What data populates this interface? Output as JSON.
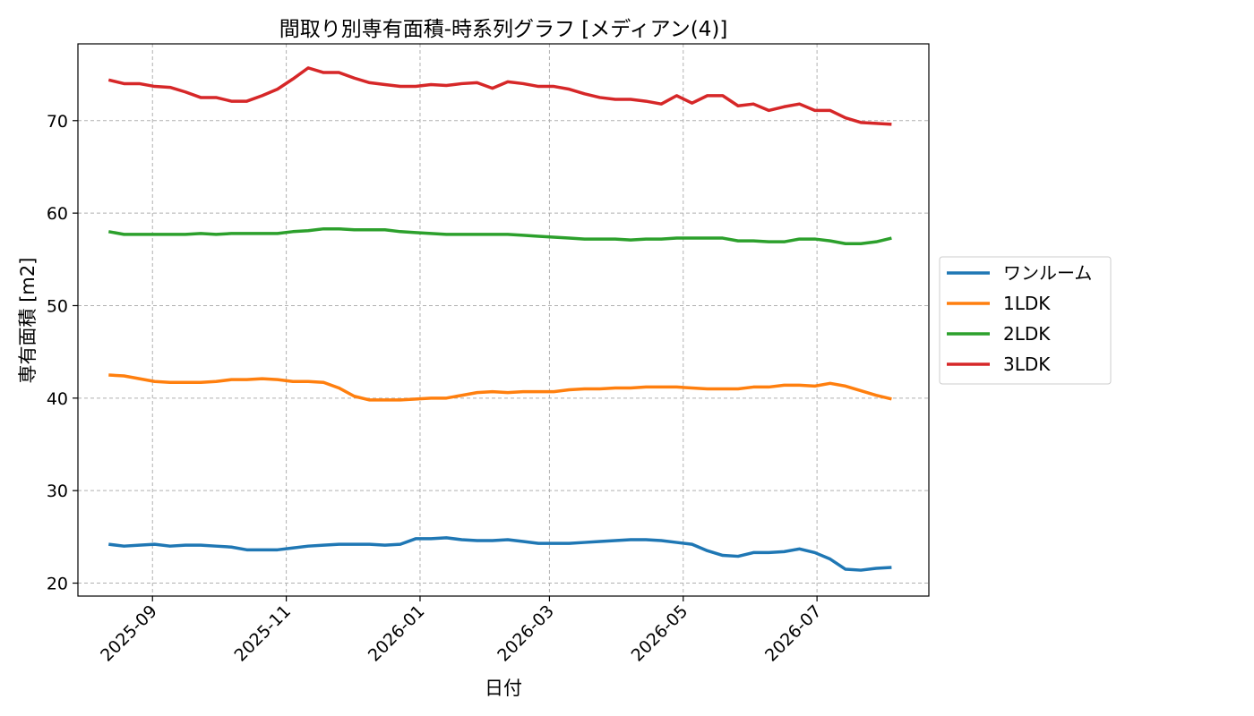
{
  "chart_data": {
    "type": "line",
    "title": "間取り別専有面積-時系列グラフ [メディアン(4)]",
    "xlabel": "日付",
    "ylabel": "専有面積 [m2]",
    "x_ticks": [
      "2025-09-01",
      "2025-11-01",
      "2026-01-01",
      "2026-03-01",
      "2026-05-01",
      "2026-07-01"
    ],
    "x_tick_labels": [
      "2025-09",
      "2025-11",
      "2026-01",
      "2026-03",
      "2026-05",
      "2026-07"
    ],
    "x_range": [
      "2025-07-29",
      "2026-08-21"
    ],
    "ylim": [
      18.6,
      78.3
    ],
    "y_ticks": [
      20,
      30,
      40,
      50,
      60,
      70
    ],
    "y_tick_labels": [
      "20",
      "30",
      "40",
      "50",
      "60",
      "70"
    ],
    "grid": true,
    "legend_position": "right",
    "x": [
      "2025-08-12",
      "2025-08-19",
      "2025-08-26",
      "2025-09-02",
      "2025-09-09",
      "2025-09-16",
      "2025-09-23",
      "2025-09-30",
      "2025-10-07",
      "2025-10-14",
      "2025-10-21",
      "2025-10-28",
      "2025-11-04",
      "2025-11-11",
      "2025-11-18",
      "2025-11-25",
      "2025-12-02",
      "2025-12-09",
      "2025-12-16",
      "2025-12-23",
      "2025-12-30",
      "2026-01-06",
      "2026-01-13",
      "2026-01-20",
      "2026-01-27",
      "2026-02-03",
      "2026-02-10",
      "2026-02-17",
      "2026-02-24",
      "2026-03-03",
      "2026-03-10",
      "2026-03-17",
      "2026-03-24",
      "2026-03-31",
      "2026-04-07",
      "2026-04-14",
      "2026-04-21",
      "2026-04-28",
      "2026-05-05",
      "2026-05-12",
      "2026-05-19",
      "2026-05-26",
      "2026-06-02",
      "2026-06-09",
      "2026-06-16",
      "2026-06-23",
      "2026-06-30",
      "2026-07-07",
      "2026-07-14",
      "2026-07-21",
      "2026-07-28",
      "2026-08-04"
    ],
    "series": [
      {
        "name": "ワンルーム",
        "color": "#1f77b4",
        "values": [
          24.2,
          24.0,
          24.1,
          24.2,
          24.0,
          24.1,
          24.1,
          24.0,
          23.9,
          23.6,
          23.6,
          23.6,
          23.8,
          24.0,
          24.1,
          24.2,
          24.2,
          24.2,
          24.1,
          24.2,
          24.8,
          24.8,
          24.9,
          24.7,
          24.6,
          24.6,
          24.7,
          24.5,
          24.3,
          24.3,
          24.3,
          24.4,
          24.5,
          24.6,
          24.7,
          24.7,
          24.6,
          24.4,
          24.2,
          23.5,
          23.0,
          22.9,
          23.3,
          23.3,
          23.4,
          23.7,
          23.3,
          22.6,
          21.5,
          21.4,
          21.6,
          21.7
        ]
      },
      {
        "name": "1LDK",
        "color": "#ff7f0e",
        "values": [
          42.5,
          42.4,
          42.1,
          41.8,
          41.7,
          41.7,
          41.7,
          41.8,
          42.0,
          42.0,
          42.1,
          42.0,
          41.8,
          41.8,
          41.7,
          41.1,
          40.2,
          39.8,
          39.8,
          39.8,
          39.9,
          40.0,
          40.0,
          40.3,
          40.6,
          40.7,
          40.6,
          40.7,
          40.7,
          40.7,
          40.9,
          41.0,
          41.0,
          41.1,
          41.1,
          41.2,
          41.2,
          41.2,
          41.1,
          41.0,
          41.0,
          41.0,
          41.2,
          41.2,
          41.4,
          41.4,
          41.3,
          41.6,
          41.3,
          40.8,
          40.3,
          39.9
        ]
      },
      {
        "name": "2LDK",
        "color": "#2ca02c",
        "values": [
          58.0,
          57.7,
          57.7,
          57.7,
          57.7,
          57.7,
          57.8,
          57.7,
          57.8,
          57.8,
          57.8,
          57.8,
          58.0,
          58.1,
          58.3,
          58.3,
          58.2,
          58.2,
          58.2,
          58.0,
          57.9,
          57.8,
          57.7,
          57.7,
          57.7,
          57.7,
          57.7,
          57.6,
          57.5,
          57.4,
          57.3,
          57.2,
          57.2,
          57.2,
          57.1,
          57.2,
          57.2,
          57.3,
          57.3,
          57.3,
          57.3,
          57.0,
          57.0,
          56.9,
          56.9,
          57.2,
          57.2,
          57.0,
          56.7,
          56.7,
          56.9,
          57.3
        ]
      },
      {
        "name": "3LDK",
        "color": "#d62728",
        "values": [
          74.4,
          74.0,
          74.0,
          73.7,
          73.6,
          73.1,
          72.5,
          72.5,
          72.1,
          72.1,
          72.7,
          73.4,
          74.5,
          75.7,
          75.2,
          75.2,
          74.6,
          74.1,
          73.9,
          73.7,
          73.7,
          73.9,
          73.8,
          74.0,
          74.1,
          73.5,
          74.2,
          74.0,
          73.7,
          73.7,
          73.4,
          72.9,
          72.5,
          72.3,
          72.3,
          72.1,
          71.8,
          72.7,
          71.9,
          72.7,
          72.7,
          71.6,
          71.8,
          71.1,
          71.5,
          71.8,
          71.1,
          71.1,
          70.3,
          69.8,
          69.7,
          69.6
        ]
      }
    ]
  }
}
